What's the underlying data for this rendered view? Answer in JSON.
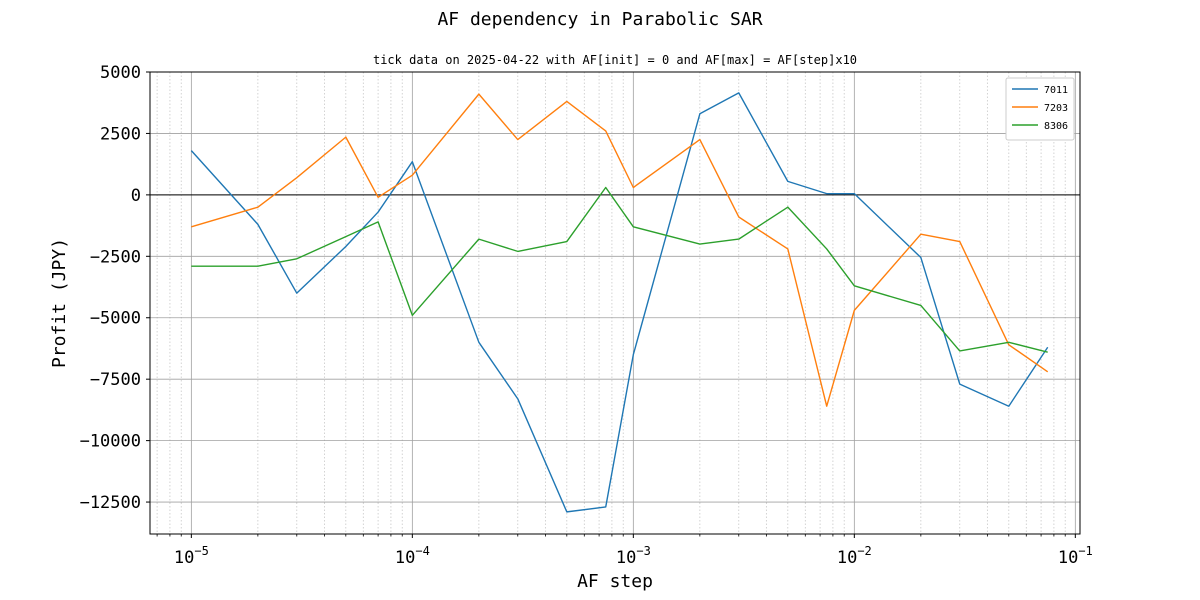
{
  "chart_data": {
    "type": "line",
    "title": "AF dependency in Parabolic SAR",
    "subtitle": "tick data on 2025-04-22 with AF[init] = 0 and AF[max] = AF[step]x10",
    "xlabel": "AF step",
    "ylabel": "Profit (JPY)",
    "xscale": "log",
    "xlim": [
      6.5e-06,
      0.105
    ],
    "ylim": [
      -13800,
      5000
    ],
    "grid": true,
    "legend_position": "top-right",
    "zero_line": true,
    "x": [
      1e-05,
      2e-05,
      3e-05,
      5e-05,
      7e-05,
      0.0001,
      0.0002,
      0.0003,
      0.0005,
      0.00075,
      0.001,
      0.002,
      0.003,
      0.005,
      0.0075,
      0.01,
      0.02,
      0.03,
      0.05,
      0.075
    ],
    "x_ticks": [
      {
        "value": 1e-05,
        "base": "10",
        "exp": "−5"
      },
      {
        "value": 0.0001,
        "base": "10",
        "exp": "−4"
      },
      {
        "value": 0.001,
        "base": "10",
        "exp": "−3"
      },
      {
        "value": 0.01,
        "base": "10",
        "exp": "−2"
      },
      {
        "value": 0.1,
        "base": "10",
        "exp": "−1"
      }
    ],
    "y_ticks": [
      {
        "value": 5000,
        "label": "5000"
      },
      {
        "value": 2500,
        "label": "2500"
      },
      {
        "value": 0,
        "label": "0"
      },
      {
        "value": -2500,
        "label": "−2500"
      },
      {
        "value": -5000,
        "label": "−5000"
      },
      {
        "value": -7500,
        "label": "−7500"
      },
      {
        "value": -10000,
        "label": "−10000"
      },
      {
        "value": -12500,
        "label": "−12500"
      }
    ],
    "series": [
      {
        "name": "7011",
        "color": "#1f77b4",
        "values": [
          1800,
          -1200,
          -4000,
          -2100,
          -700,
          1350,
          -6000,
          -8300,
          -12900,
          -12700,
          -6500,
          3300,
          4150,
          550,
          50,
          50,
          -2550,
          -7700,
          -8600,
          -6200
        ]
      },
      {
        "name": "7203",
        "color": "#ff7f0e",
        "values": [
          -1300,
          -500,
          700,
          2350,
          -100,
          800,
          4100,
          2250,
          3800,
          2600,
          300,
          2250,
          -900,
          -2200,
          -8600,
          -4700,
          -1600,
          -1900,
          -6100,
          -7200
        ]
      },
      {
        "name": "8306",
        "color": "#2ca02c",
        "values": [
          -2900,
          -2900,
          -2600,
          -1700,
          -1100,
          -4900,
          -1800,
          -2300,
          -1900,
          300,
          -1300,
          -2000,
          -1800,
          -500,
          -2200,
          -3700,
          -4500,
          -6350,
          -6000,
          -6400
        ]
      }
    ]
  }
}
